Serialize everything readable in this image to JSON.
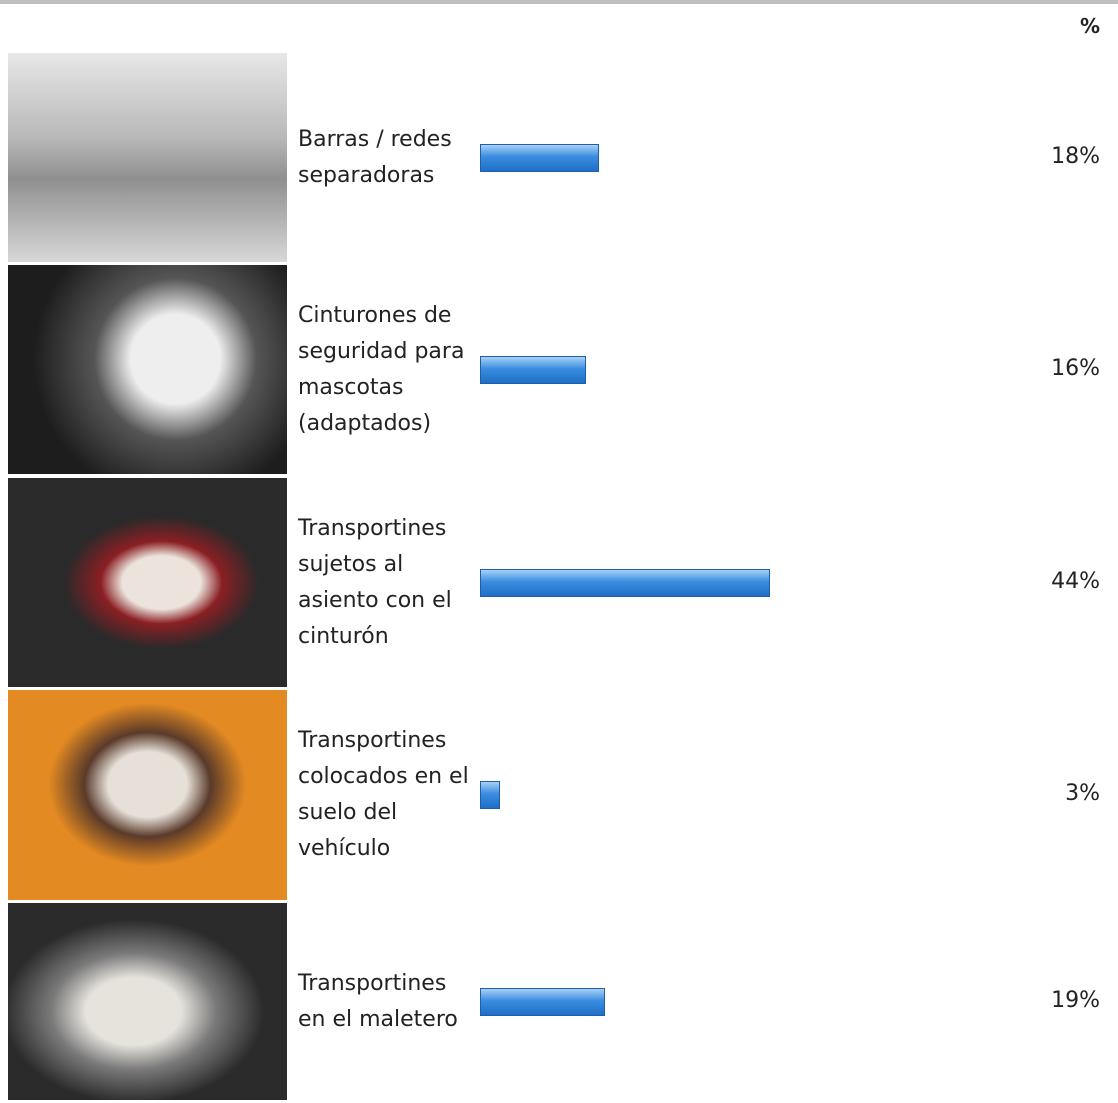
{
  "chart_data": {
    "type": "bar",
    "orientation": "horizontal",
    "value_header": "%",
    "categories": [
      "Barras / redes separadoras",
      "Cinturones de seguridad para mascotas (adaptados)",
      "Transportines sujetos al asiento con el cinturón",
      "Transportines colocados en el suelo del vehículo",
      "Transportines en el maletero"
    ],
    "values": [
      18,
      16,
      44,
      3,
      19
    ],
    "value_labels": [
      "18%",
      "16%",
      "44%",
      "3%",
      "19%"
    ],
    "color": "#2f7fd8"
  }
}
